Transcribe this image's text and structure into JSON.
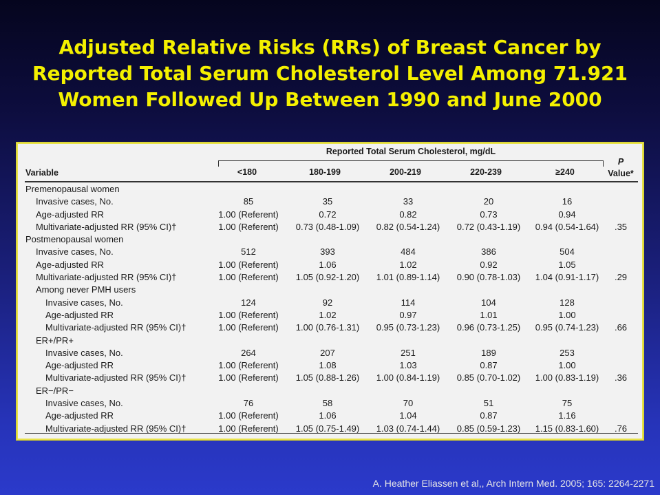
{
  "title_lines": [
    "Adjusted Relative Risks (RRs) of Breast Cancer by",
    "Reported Total Serum Cholesterol Level Among 71.921",
    "Women Followed Up Between 1990 and June 2000"
  ],
  "table": {
    "group_header": "Reported Total Serum Cholesterol, mg/dL",
    "variable_header": "Variable",
    "columns": [
      "<180",
      "180-199",
      "200-219",
      "220-239",
      "≥240"
    ],
    "p_header_1": "P",
    "p_header_2": "Value*",
    "rows": [
      {
        "label": "Premenopausal women",
        "indent": 0,
        "cells": [
          "",
          "",
          "",
          "",
          ""
        ],
        "p": ""
      },
      {
        "label": "Invasive cases, No.",
        "indent": 1,
        "cells": [
          "85",
          "35",
          "33",
          "20",
          "16"
        ],
        "p": ""
      },
      {
        "label": "Age-adjusted RR",
        "indent": 1,
        "cells": [
          "1.00 (Referent)",
          "0.72",
          "0.82",
          "0.73",
          "0.94"
        ],
        "p": ""
      },
      {
        "label": "Multivariate-adjusted RR (95% CI)†",
        "indent": 1,
        "cells": [
          "1.00 (Referent)",
          "0.73 (0.48-1.09)",
          "0.82 (0.54-1.24)",
          "0.72 (0.43-1.19)",
          "0.94 (0.54-1.64)"
        ],
        "p": ".35"
      },
      {
        "label": "Postmenopausal women",
        "indent": 0,
        "cells": [
          "",
          "",
          "",
          "",
          ""
        ],
        "p": ""
      },
      {
        "label": "Invasive cases, No.",
        "indent": 1,
        "cells": [
          "512",
          "393",
          "484",
          "386",
          "504"
        ],
        "p": ""
      },
      {
        "label": "Age-adjusted RR",
        "indent": 1,
        "cells": [
          "1.00 (Referent)",
          "1.06",
          "1.02",
          "0.92",
          "1.05"
        ],
        "p": ""
      },
      {
        "label": "Multivariate-adjusted RR (95% CI)†",
        "indent": 1,
        "cells": [
          "1.00 (Referent)",
          "1.05 (0.92-1.20)",
          "1.01 (0.89-1.14)",
          "0.90 (0.78-1.03)",
          "1.04 (0.91-1.17)"
        ],
        "p": ".29"
      },
      {
        "label": "Among never PMH users",
        "indent": 1,
        "cells": [
          "",
          "",
          "",
          "",
          ""
        ],
        "p": ""
      },
      {
        "label": "Invasive cases, No.",
        "indent": 2,
        "cells": [
          "124",
          "92",
          "114",
          "104",
          "128"
        ],
        "p": ""
      },
      {
        "label": "Age-adjusted RR",
        "indent": 2,
        "cells": [
          "1.00 (Referent)",
          "1.02",
          "0.97",
          "1.01",
          "1.00"
        ],
        "p": ""
      },
      {
        "label": "Multivariate-adjusted RR (95% CI)†",
        "indent": 2,
        "cells": [
          "1.00 (Referent)",
          "1.00 (0.76-1.31)",
          "0.95 (0.73-1.23)",
          "0.96 (0.73-1.25)",
          "0.95 (0.74-1.23)"
        ],
        "p": ".66"
      },
      {
        "label": "ER+/PR+",
        "indent": 1,
        "cells": [
          "",
          "",
          "",
          "",
          ""
        ],
        "p": ""
      },
      {
        "label": "Invasive cases, No.",
        "indent": 2,
        "cells": [
          "264",
          "207",
          "251",
          "189",
          "253"
        ],
        "p": ""
      },
      {
        "label": "Age-adjusted RR",
        "indent": 2,
        "cells": [
          "1.00 (Referent)",
          "1.08",
          "1.03",
          "0.87",
          "1.00"
        ],
        "p": ""
      },
      {
        "label": "Multivariate-adjusted RR (95% CI)†",
        "indent": 2,
        "cells": [
          "1.00 (Referent)",
          "1.05 (0.88-1.26)",
          "1.00 (0.84-1.19)",
          "0.85 (0.70-1.02)",
          "1.00 (0.83-1.19)"
        ],
        "p": ".36"
      },
      {
        "label": "ER−/PR−",
        "indent": 1,
        "cells": [
          "",
          "",
          "",
          "",
          ""
        ],
        "p": ""
      },
      {
        "label": "Invasive cases, No.",
        "indent": 2,
        "cells": [
          "76",
          "58",
          "70",
          "51",
          "75"
        ],
        "p": ""
      },
      {
        "label": "Age-adjusted RR",
        "indent": 2,
        "cells": [
          "1.00 (Referent)",
          "1.06",
          "1.04",
          "0.87",
          "1.16"
        ],
        "p": ""
      },
      {
        "label": "Multivariate-adjusted RR (95% CI)†",
        "indent": 2,
        "cells": [
          "1.00 (Referent)",
          "1.05 (0.75-1.49)",
          "1.03 (0.74-1.44)",
          "0.85 (0.59-1.23)",
          "1.15 (0.83-1.60)"
        ],
        "p": ".76"
      }
    ]
  },
  "citation": "A. Heather Eliassen et al,, Arch Intern Med. 2005; 165: 2264-2271",
  "colors": {
    "title": "#f4f000",
    "background_top": "#05051e",
    "background_bottom": "#2b3acb",
    "table_bg": "#f2f2f2",
    "table_border": "#e8e24a"
  }
}
